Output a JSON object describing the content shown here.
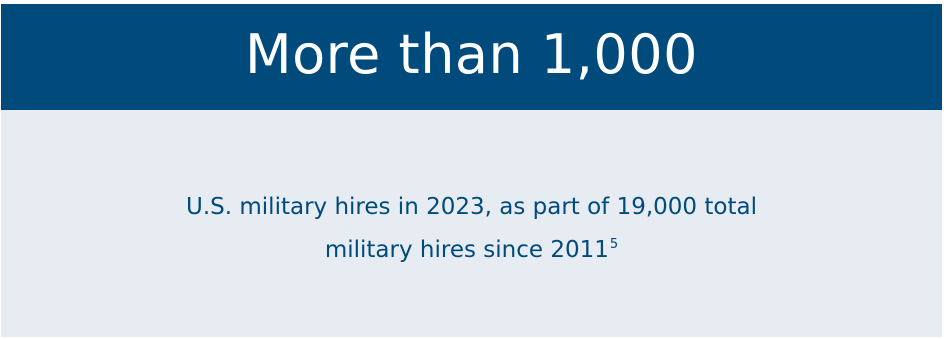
{
  "banner": {
    "headline": "More than 1,000"
  },
  "panel": {
    "line1": "U.S. military hires in 2023, as part of 19,000 total",
    "line2": "military hires since 2011",
    "footnote_marker": "5"
  },
  "colors": {
    "banner_background": "#004a7c",
    "panel_background": "#e6ecf1",
    "caption_text": "#004a7c",
    "headline_text": "#ffffff"
  }
}
